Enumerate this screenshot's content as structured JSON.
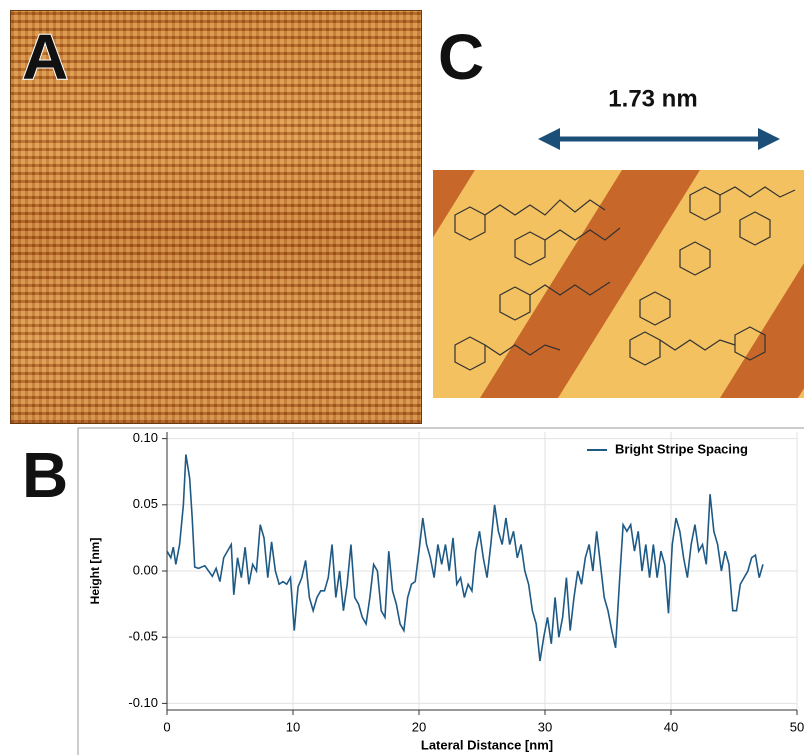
{
  "panels": {
    "a": {
      "label": "A"
    },
    "b": {
      "label": "B"
    },
    "c": {
      "label": "C",
      "dimension": "1.73 nm"
    }
  },
  "chart_data": {
    "type": "line",
    "xlabel": "Lateral Distance [nm]",
    "ylabel": "Height [nm]",
    "xlim": [
      0,
      50
    ],
    "xticks": [
      0,
      10,
      20,
      30,
      40,
      50
    ],
    "ylim": [
      -0.105,
      0.105
    ],
    "yticks": [
      {
        "value": -0.1,
        "label": "-0.10"
      },
      -0.05,
      {
        "value": 0,
        "label": "0.00"
      },
      0.05,
      {
        "value": 0.1,
        "label": "0.10"
      }
    ],
    "grid": true,
    "legend": "upper right",
    "x": [
      0,
      0.3,
      0.5,
      0.7,
      1.0,
      1.3,
      1.5,
      1.8,
      2.0,
      2.2,
      2.5,
      3.0,
      3.3,
      3.6,
      3.9,
      4.2,
      4.5,
      4.8,
      5.1,
      5.3,
      5.6,
      5.9,
      6.2,
      6.5,
      6.8,
      7.1,
      7.4,
      7.7,
      8.0,
      8.3,
      8.6,
      8.9,
      9.2,
      9.5,
      9.8,
      10.1,
      10.4,
      10.7,
      11.0,
      11.3,
      11.6,
      11.9,
      12.2,
      12.5,
      12.8,
      13.1,
      13.4,
      13.7,
      14.0,
      14.3,
      14.6,
      14.9,
      15.2,
      15.5,
      15.8,
      16.1,
      16.4,
      16.7,
      17.0,
      17.3,
      17.6,
      17.9,
      18.2,
      18.5,
      18.8,
      19.1,
      19.4,
      19.7,
      20.0,
      20.3,
      20.6,
      20.9,
      21.2,
      21.5,
      21.8,
      22.1,
      22.4,
      22.7,
      23.0,
      23.3,
      23.6,
      23.9,
      24.2,
      24.5,
      24.8,
      25.1,
      25.4,
      25.7,
      26.0,
      26.3,
      26.6,
      26.9,
      27.2,
      27.5,
      27.8,
      28.1,
      28.4,
      28.7,
      29.0,
      29.3,
      29.6,
      29.9,
      30.2,
      30.5,
      30.8,
      31.1,
      31.4,
      31.7,
      32.0,
      32.3,
      32.6,
      32.9,
      33.2,
      33.5,
      33.8,
      34.1,
      34.4,
      34.7,
      35.0,
      35.3,
      35.6,
      35.9,
      36.2,
      36.5,
      36.8,
      37.1,
      37.4,
      37.7,
      38.0,
      38.3,
      38.6,
      38.9,
      39.2,
      39.5,
      39.8,
      40.1,
      40.4,
      40.7,
      41.0,
      41.3,
      41.6,
      41.9,
      42.2,
      42.5,
      42.8,
      43.1,
      43.4,
      43.7,
      44.0,
      44.3,
      44.6,
      44.9,
      45.2,
      45.5,
      45.8,
      46.1,
      46.4,
      46.7,
      47.0,
      47.3
    ],
    "series": [
      {
        "name": "Bright Stripe Spacing",
        "color": "#1f5a85",
        "values": [
          0.015,
          0.01,
          0.018,
          0.005,
          0.02,
          0.05,
          0.088,
          0.07,
          0.04,
          0.003,
          0.002,
          0.004,
          0,
          -0.004,
          0.002,
          -0.008,
          0.01,
          0.015,
          0.02,
          -0.018,
          0.01,
          -0.005,
          0.018,
          -0.01,
          0.005,
          0,
          0.035,
          0.025,
          -0.005,
          0.022,
          0,
          -0.01,
          -0.008,
          -0.01,
          -0.005,
          -0.045,
          -0.012,
          -0.005,
          0.008,
          -0.02,
          -0.03,
          -0.02,
          -0.015,
          -0.015,
          -0.005,
          0.02,
          -0.02,
          0,
          -0.03,
          -0.01,
          0.02,
          -0.02,
          -0.025,
          -0.035,
          -0.04,
          -0.02,
          0.005,
          0,
          -0.03,
          -0.035,
          0.015,
          -0.015,
          -0.025,
          -0.04,
          -0.045,
          -0.02,
          -0.01,
          -0.008,
          0.015,
          0.04,
          0.02,
          0.01,
          -0.005,
          0.02,
          0.005,
          0.02,
          0,
          0.025,
          -0.01,
          -0.005,
          -0.02,
          -0.01,
          -0.015,
          0.015,
          0.03,
          0.01,
          -0.005,
          0.02,
          0.05,
          0.03,
          0.02,
          0.04,
          0.02,
          0.03,
          0.01,
          0.02,
          0,
          -0.01,
          -0.03,
          -0.04,
          -0.068,
          -0.05,
          -0.035,
          -0.055,
          -0.02,
          -0.05,
          -0.035,
          -0.005,
          -0.045,
          -0.02,
          0,
          -0.01,
          0.01,
          0.02,
          0,
          0.03,
          0.005,
          -0.02,
          -0.03,
          -0.045,
          -0.058,
          -0.01,
          0.035,
          0.03,
          0.035,
          0.015,
          0.03,
          0,
          0.02,
          -0.005,
          0.02,
          -0.005,
          0.015,
          0.005,
          -0.032,
          0.02,
          0.04,
          0.03,
          0.01,
          -0.005,
          0.02,
          0.035,
          0.015,
          0.02,
          0.005,
          0.058,
          0.03,
          0.02,
          0,
          0.015,
          0.005,
          -0.03,
          -0.03,
          -0.01,
          -0.005,
          0,
          0.01,
          0.012,
          -0.005,
          0.005
        ]
      }
    ]
  }
}
